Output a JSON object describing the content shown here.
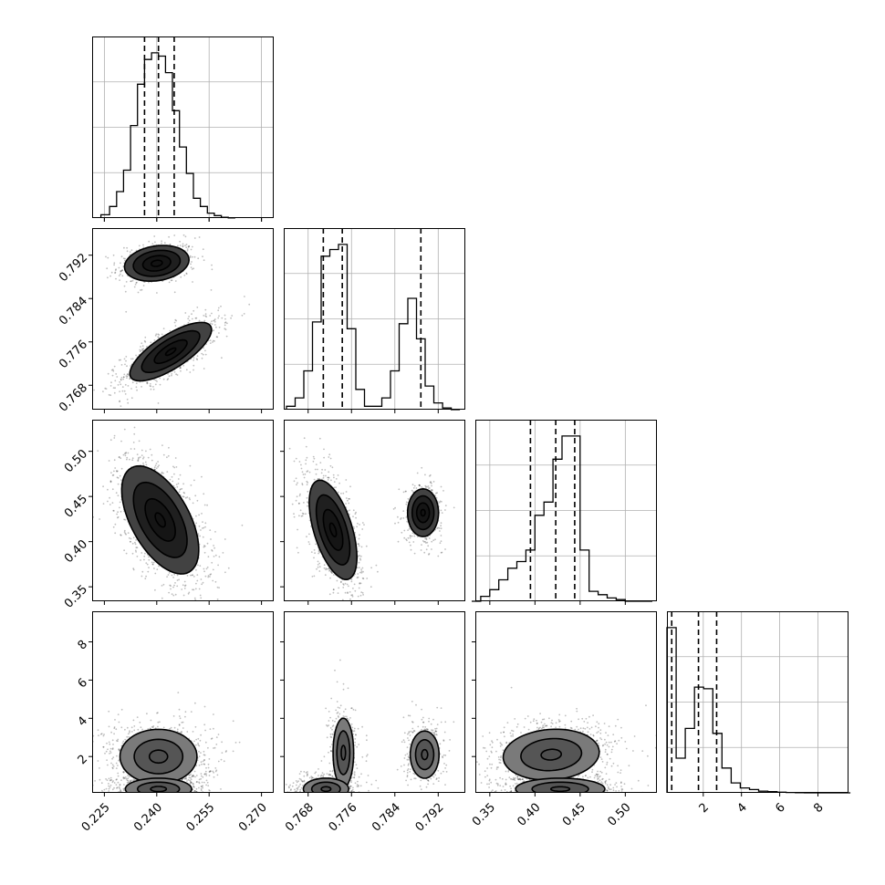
{
  "chart_data": {
    "type": "corner",
    "params": [
      {
        "ticks": [
          0.225,
          0.24,
          0.255,
          0.27
        ],
        "tick_labels": [
          "0.225",
          "0.240",
          "0.255",
          "0.270"
        ],
        "range": [
          0.2215,
          0.2735
        ]
      },
      {
        "ticks": [
          0.768,
          0.776,
          0.784,
          0.792
        ],
        "tick_labels": [
          "0.768",
          "0.776",
          "0.784",
          "0.792"
        ],
        "range": [
          0.7635,
          0.797
        ]
      },
      {
        "ticks": [
          0.35,
          0.4,
          0.45,
          0.5
        ],
        "tick_labels": [
          "0.35",
          "0.40",
          "0.45",
          "0.50"
        ],
        "range": [
          0.334,
          0.535
        ]
      },
      {
        "ticks": [
          2,
          4,
          6,
          8
        ],
        "tick_labels": [
          "2",
          "4",
          "6",
          "8"
        ],
        "range": [
          0.1,
          9.6
        ]
      }
    ],
    "histograms": [
      {
        "param": 0,
        "bins": [
          0.224,
          0.2265,
          0.2285,
          0.2305,
          0.2325,
          0.2345,
          0.2365,
          0.2385,
          0.2405,
          0.2425,
          0.2445,
          0.2465,
          0.2485,
          0.2505,
          0.2525,
          0.2545,
          0.2565,
          0.2585,
          0.2605,
          0.2625
        ],
        "counts": [
          0.02,
          0.07,
          0.16,
          0.29,
          0.56,
          0.81,
          0.96,
          1.0,
          0.98,
          0.88,
          0.65,
          0.43,
          0.27,
          0.12,
          0.07,
          0.03,
          0.015,
          0.005,
          0.001
        ],
        "quantiles": [
          0.2365,
          0.2405,
          0.245
        ]
      },
      {
        "param": 1,
        "bins": [
          0.764,
          0.7656,
          0.7672,
          0.7688,
          0.7704,
          0.772,
          0.7736,
          0.7752,
          0.7768,
          0.7784,
          0.78,
          0.7816,
          0.7832,
          0.7848,
          0.7864,
          0.788,
          0.7896,
          0.7912,
          0.7928,
          0.7944,
          0.796
        ],
        "counts": [
          0.02,
          0.07,
          0.23,
          0.52,
          0.91,
          0.95,
          0.98,
          0.48,
          0.12,
          0.02,
          0.02,
          0.07,
          0.23,
          0.51,
          0.66,
          0.42,
          0.14,
          0.04,
          0.01,
          0.0
        ],
        "quantiles": [
          0.7708,
          0.7743,
          0.7888
        ]
      },
      {
        "param": 2,
        "bins": [
          0.33,
          0.34,
          0.35,
          0.36,
          0.37,
          0.38,
          0.39,
          0.4,
          0.41,
          0.42,
          0.43,
          0.44,
          0.45,
          0.46,
          0.47,
          0.48,
          0.49,
          0.5,
          0.51,
          0.52,
          0.53
        ],
        "counts": [
          0.0,
          0.03,
          0.07,
          0.13,
          0.2,
          0.24,
          0.31,
          0.52,
          0.6,
          0.86,
          1.0,
          1.0,
          0.31,
          0.06,
          0.04,
          0.02,
          0.01,
          0.0,
          0.0,
          0.0
        ],
        "quantiles": [
          0.395,
          0.423,
          0.444
        ]
      },
      {
        "param": 3,
        "bins": [
          0.1,
          0.58,
          1.06,
          1.54,
          2.02,
          2.5,
          2.98,
          3.46,
          3.94,
          4.42,
          4.9,
          5.38,
          5.86,
          6.34,
          6.82,
          7.3,
          7.78,
          8.26,
          8.74,
          9.22,
          9.7
        ],
        "counts": [
          1.0,
          0.21,
          0.39,
          0.64,
          0.63,
          0.36,
          0.15,
          0.06,
          0.03,
          0.02,
          0.01,
          0.007,
          0.004,
          0.002,
          0.001,
          0.0,
          0.0,
          0.0,
          0.0,
          0.0
        ],
        "quantiles": [
          0.35,
          1.75,
          2.7
        ]
      }
    ],
    "pair_panels": [
      {
        "x_param": 0,
        "y_param": 1,
        "modes": [
          {
            "cx": 0.24,
            "cy": 0.7905,
            "sx": 0.0042,
            "sy": 0.0015,
            "rho": 0.2,
            "weight": 0.35,
            "level_scales": [
              0.38,
              0.95,
              1.6,
              2.2
            ]
          },
          {
            "cx": 0.244,
            "cy": 0.7742,
            "sx": 0.0052,
            "sy": 0.0024,
            "rho": 0.75,
            "weight": 0.65,
            "level_scales": [
              0.28,
              0.9,
              1.6,
              2.25
            ]
          }
        ]
      },
      {
        "x_param": 0,
        "y_param": 2,
        "modes": [
          {
            "cx": 0.241,
            "cy": 0.424,
            "sx": 0.0048,
            "sy": 0.026,
            "rho": -0.55,
            "weight": 1.0,
            "level_scales": [
              0.3,
              0.9,
              1.6,
              2.3
            ]
          }
        ]
      },
      {
        "x_param": 1,
        "y_param": 2,
        "modes": [
          {
            "cx": 0.7726,
            "cy": 0.413,
            "sx": 0.002,
            "sy": 0.025,
            "rho": -0.55,
            "weight": 0.62,
            "level_scales": [
              0.3,
              0.9,
              1.55,
              2.2
            ]
          },
          {
            "cx": 0.7892,
            "cy": 0.432,
            "sx": 0.0013,
            "sy": 0.012,
            "rho": 0.0,
            "weight": 0.38,
            "level_scales": [
              0.3,
              0.9,
              1.55,
              2.2
            ]
          }
        ]
      },
      {
        "x_param": 0,
        "y_param": 3,
        "modes": [
          {
            "cx": 0.2405,
            "cy": 2.0,
            "sx": 0.0058,
            "sy": 0.75,
            "rho": 0.0,
            "weight": 0.55,
            "level_scales": [
              0.45,
              1.2,
              1.9
            ]
          },
          {
            "cx": 0.2405,
            "cy": 0.3,
            "sx": 0.005,
            "sy": 0.3,
            "rho": 0.0,
            "weight": 0.45,
            "level_scales": [
              0.45,
              1.2,
              1.9
            ]
          }
        ]
      },
      {
        "x_param": 1,
        "y_param": 3,
        "modes": [
          {
            "cx": 0.7745,
            "cy": 2.2,
            "sx": 0.001,
            "sy": 0.95,
            "rho": 0.0,
            "weight": 0.3,
            "level_scales": [
              0.4,
              1.2,
              1.9
            ]
          },
          {
            "cx": 0.7895,
            "cy": 2.1,
            "sx": 0.0014,
            "sy": 0.65,
            "rho": 0.0,
            "weight": 0.25,
            "level_scales": [
              0.4,
              1.2,
              1.9
            ]
          },
          {
            "cx": 0.7713,
            "cy": 0.3,
            "sx": 0.0022,
            "sy": 0.3,
            "rho": 0.0,
            "weight": 0.45,
            "level_scales": [
              0.4,
              1.2,
              1.9
            ]
          }
        ]
      },
      {
        "x_param": 2,
        "y_param": 3,
        "modes": [
          {
            "cx": 0.418,
            "cy": 2.1,
            "sx": 0.028,
            "sy": 0.7,
            "rho": 0.1,
            "weight": 0.55,
            "level_scales": [
              0.4,
              1.2,
              1.9
            ]
          },
          {
            "cx": 0.428,
            "cy": 0.3,
            "sx": 0.026,
            "sy": 0.3,
            "rho": 0.0,
            "weight": 0.45,
            "level_scales": [
              0.4,
              1.2,
              1.9
            ]
          }
        ]
      }
    ],
    "grid": true,
    "colors": {
      "line": "#000000",
      "grid": "#b0b0b0",
      "scatter": "#000000",
      "fill": "#000000"
    }
  }
}
